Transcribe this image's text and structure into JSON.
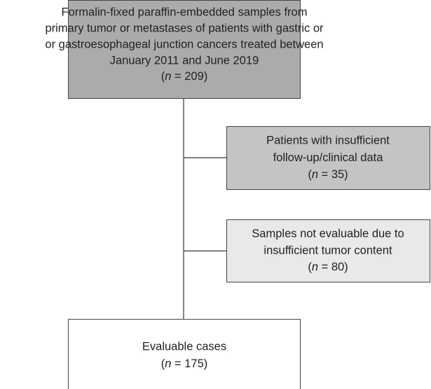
{
  "nodes": [
    {
      "lines": [
        "Formalin-fixed paraffin-embedded samples from",
        "primary tumor or metastases of patients with gastric or",
        "or gastroesophageal junction cancers treated between",
        "January 2011 and June 2019"
      ],
      "count": {
        "open": "(",
        "symbol": "n",
        "rest": " = 209)"
      }
    },
    {
      "lines": [
        "Patients with insufficient",
        "follow-up/clinical data"
      ],
      "count": {
        "open": "(",
        "symbol": "n",
        "rest": " = 35)"
      }
    },
    {
      "lines": [
        "Samples not evaluable due to",
        "insufficient tumor content"
      ],
      "count": {
        "open": "(",
        "symbol": "n",
        "rest": " = 80)"
      }
    },
    {
      "lines": [
        "Evaluable cases"
      ],
      "count": {
        "open": "(",
        "symbol": "n",
        "rest": " = 175)"
      }
    }
  ]
}
